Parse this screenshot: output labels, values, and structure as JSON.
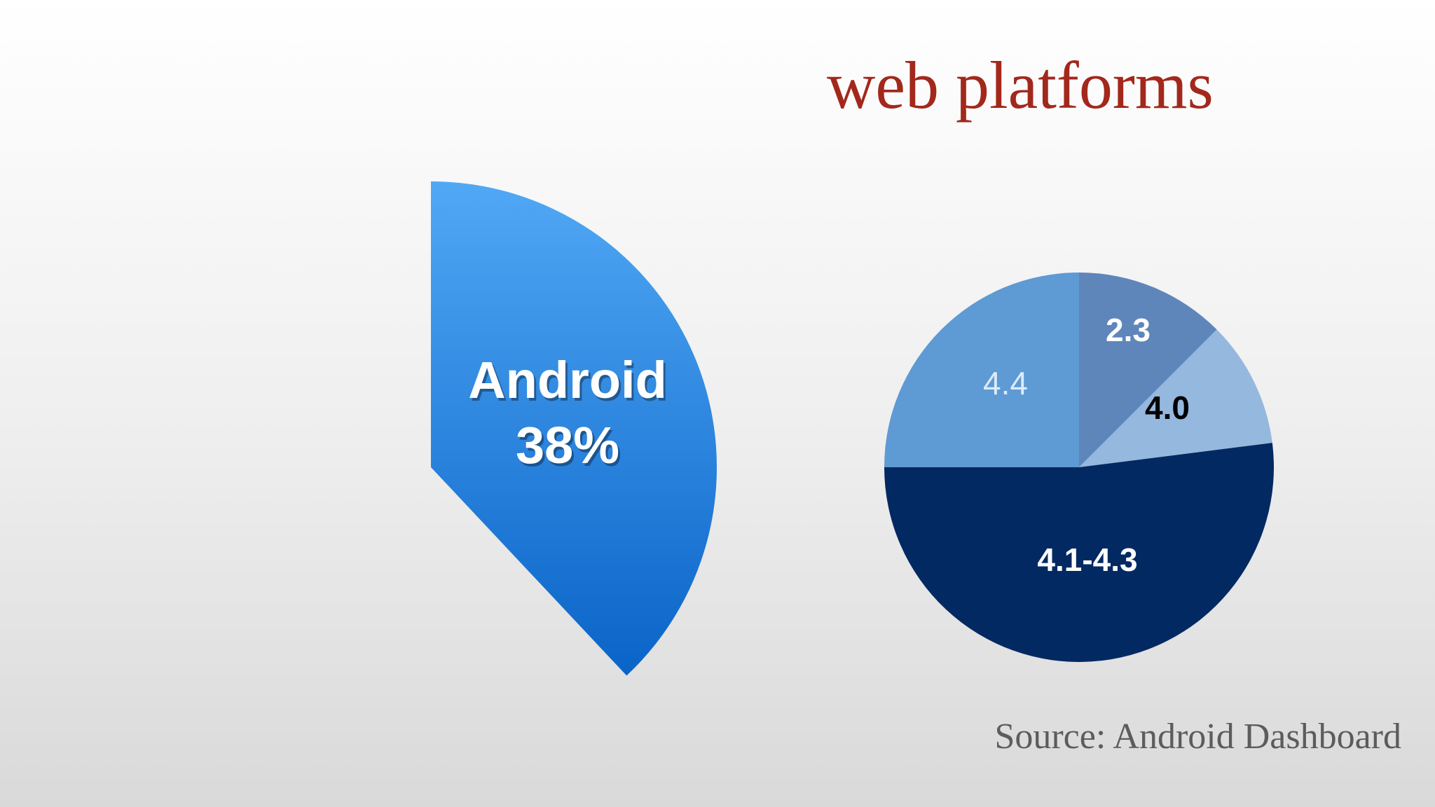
{
  "slide": {
    "title": "web platforms",
    "source": "Source: Android Dashboard"
  },
  "colors": {
    "title": "#a3281c",
    "source": "#5c5c5c",
    "android_gradient_top": "#51a8f5",
    "android_gradient_bottom": "#0a64c8"
  },
  "chart_data": [
    {
      "type": "pie",
      "title": "",
      "slices": [
        {
          "label": "Android",
          "value_label": "38%",
          "value": 38,
          "color": "#2d8ae6"
        }
      ]
    },
    {
      "type": "pie",
      "title": "",
      "slices": [
        {
          "label": "2.3",
          "value": 12.5,
          "color": "#5e86bb",
          "label_color": "#ffffff",
          "label_bold": true
        },
        {
          "label": "4.0",
          "value": 10.5,
          "color": "#95b8de",
          "label_color": "#000000",
          "label_bold": true
        },
        {
          "label": "4.1-4.3",
          "value": 52.0,
          "color": "#032962",
          "label_color": "#ffffff",
          "label_bold": true
        },
        {
          "label": "4.4",
          "value": 25.0,
          "color": "#5e9ad4",
          "label_color": "#dcebf8",
          "label_bold": false
        }
      ]
    }
  ]
}
